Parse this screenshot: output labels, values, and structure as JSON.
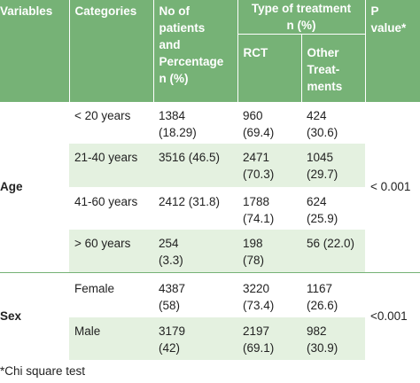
{
  "header": {
    "variables": "Variables",
    "categories": "Categories",
    "patients": [
      "No of",
      "patients",
      "and",
      "Percentage",
      "n (%)"
    ],
    "treatment": [
      "Type of treatment",
      "n (%)"
    ],
    "rct": "RCT",
    "other": [
      "Other",
      "Treat-",
      "ments"
    ],
    "pvalue": [
      "P",
      "value*"
    ]
  },
  "groups": [
    {
      "variable": "Age",
      "pvalue": "< 0.001",
      "rows": [
        {
          "category": "< 20 years",
          "patients": [
            "1384",
            "(18.29)"
          ],
          "rct": [
            "960",
            "(69.4)"
          ],
          "other": [
            "424",
            "(30.6)"
          ]
        },
        {
          "category": "21-40 years",
          "patients": [
            "3516 (46.5)"
          ],
          "rct": [
            "2471",
            "(70.3)"
          ],
          "other": [
            "1045",
            "(29.7)"
          ]
        },
        {
          "category": "41-60 years",
          "patients": [
            "2412 (31.8)"
          ],
          "rct": [
            "1788",
            "(74.1)"
          ],
          "other": [
            "624",
            "(25.9)"
          ]
        },
        {
          "category": "> 60 years",
          "patients": [
            "254",
            "(3.3)"
          ],
          "rct": [
            "198",
            "(78)"
          ],
          "other": [
            "56 (22.0)"
          ]
        }
      ]
    },
    {
      "variable": "Sex",
      "pvalue": "<0.001",
      "rows": [
        {
          "category": "Female",
          "patients": [
            "4387",
            "(58)"
          ],
          "rct": [
            "3220",
            "(73.4)"
          ],
          "other": [
            "1167",
            "(26.6)"
          ]
        },
        {
          "category": "Male",
          "patients": [
            "3179",
            "(42)"
          ],
          "rct": [
            "2197",
            "(69.1)"
          ],
          "other": [
            "982",
            "(30.9)"
          ]
        }
      ]
    }
  ],
  "footnote": "*Chi square test"
}
